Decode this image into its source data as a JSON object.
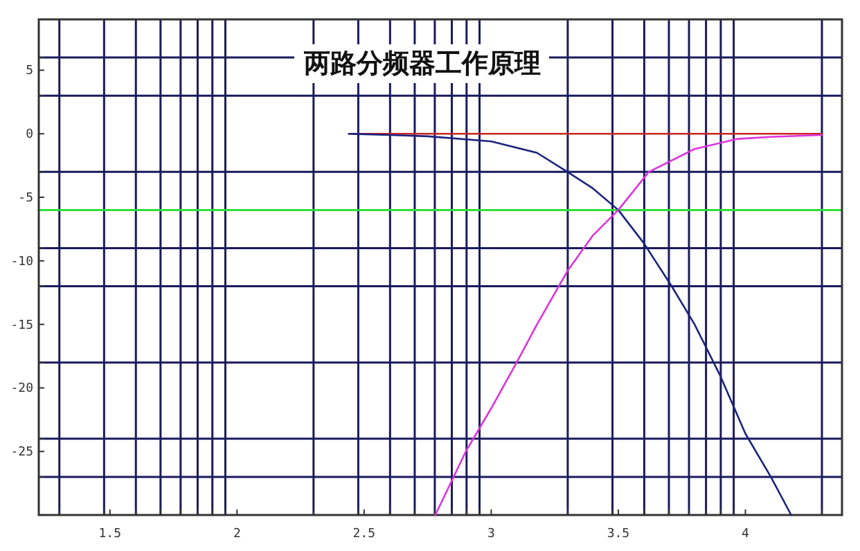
{
  "chart_data": {
    "type": "line",
    "title": "两路分频器工作原理",
    "xlim": [
      1.22,
      4.38
    ],
    "ylim": [
      -30,
      9
    ],
    "xticks": [
      {
        "value": 1.301,
        "label": null
      },
      {
        "value": 1.477,
        "label": null
      },
      1.5,
      {
        "value": 1.602,
        "label": null
      },
      {
        "value": 1.699,
        "label": null
      },
      {
        "value": 1.778,
        "label": null
      },
      {
        "value": 1.845,
        "label": null
      },
      {
        "value": 1.903,
        "label": null
      },
      {
        "value": 1.954,
        "label": null
      },
      2,
      {
        "value": 2.301,
        "label": null
      },
      {
        "value": 2.477,
        "label": null
      },
      2.5,
      {
        "value": 2.602,
        "label": null
      },
      {
        "value": 2.699,
        "label": null
      },
      {
        "value": 2.778,
        "label": null
      },
      {
        "value": 2.845,
        "label": null
      },
      {
        "value": 2.903,
        "label": null
      },
      {
        "value": 2.954,
        "label": null
      },
      3,
      {
        "value": 3.301,
        "label": null
      },
      {
        "value": 3.477,
        "label": null
      },
      3.5,
      {
        "value": 3.602,
        "label": null
      },
      {
        "value": 3.699,
        "label": null
      },
      {
        "value": 3.778,
        "label": null
      },
      {
        "value": 3.845,
        "label": null
      },
      {
        "value": 3.903,
        "label": null
      },
      {
        "value": 3.954,
        "label": null
      },
      4,
      {
        "value": 4.301,
        "label": null
      }
    ],
    "yticks": [
      {
        "value": 6,
        "label": null
      },
      5,
      {
        "value": 3,
        "label": null
      },
      0,
      {
        "value": -3,
        "label": null
      },
      -5,
      {
        "value": -9,
        "label": null
      },
      -10,
      {
        "value": -12,
        "label": null
      },
      -15,
      {
        "value": -18,
        "label": null
      },
      -20,
      {
        "value": -24,
        "label": null
      },
      -25,
      {
        "value": -27,
        "label": null
      }
    ],
    "grid": true,
    "ref_lines": [
      {
        "axis": "y",
        "value": -6,
        "color": "#33dd33"
      }
    ],
    "series": [
      {
        "color": "#cc2222",
        "x": [
          2.44,
          4.3
        ],
        "values": [
          0,
          0
        ]
      },
      {
        "color": "#1a237e",
        "x": [
          2.44,
          2.6,
          2.75,
          3.0,
          3.18,
          3.3,
          3.4,
          3.5,
          3.6,
          3.71,
          3.8,
          3.9,
          4.0,
          4.1,
          4.18
        ],
        "values": [
          0,
          -0.1,
          -0.2,
          -0.6,
          -1.5,
          -3,
          -4.3,
          -6,
          -8.6,
          -12,
          -15,
          -19,
          -23.6,
          -27,
          -30
        ]
      },
      {
        "color": "#dd33dd",
        "x": [
          2.78,
          2.9,
          3.0,
          3.1,
          3.18,
          3.3,
          3.4,
          3.5,
          3.62,
          3.8,
          3.97,
          4.1,
          4.3
        ],
        "values": [
          -30,
          -25,
          -21.6,
          -18,
          -15,
          -10.8,
          -8,
          -6,
          -3,
          -1.2,
          -0.4,
          -0.25,
          -0.1
        ]
      }
    ]
  }
}
